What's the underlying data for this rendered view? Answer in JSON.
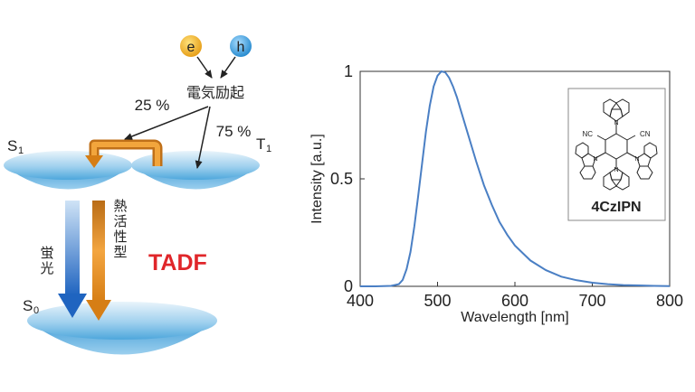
{
  "diagram": {
    "electron": "e",
    "hole": "h",
    "excitation": "電気励起",
    "singlet_pct": "25 %",
    "triplet_pct": "75 %",
    "s1": "S",
    "s1_sub": "1",
    "t1": "T",
    "t1_sub": "1",
    "s0": "S",
    "s0_sub": "0",
    "fluorescence": [
      "蛍",
      "光"
    ],
    "thermal": [
      "熱",
      "活",
      "性",
      "型"
    ],
    "tadf": "TADF",
    "colors": {
      "electron": "#f3b21b",
      "hole": "#2f9ad8",
      "arrow_orange": "#e08a1e",
      "arrow_blue": "#2a70c8",
      "disc": "#3c9ad4",
      "tadf": "#e0262a"
    }
  },
  "chart_data": {
    "type": "line",
    "title": "",
    "xlabel": "Wavelength [nm]",
    "ylabel": "Intensity [a.u.]",
    "xlim": [
      400,
      800
    ],
    "ylim": [
      0,
      1
    ],
    "xticks": [
      "400",
      "500",
      "600",
      "700",
      "800"
    ],
    "yticks": [
      "0",
      "0.5",
      "1"
    ],
    "inset_label": "4CzIPN",
    "inset_groups": [
      "NC",
      "CN",
      "N",
      "N",
      "N",
      "N"
    ],
    "line_color": "#4a7fc4",
    "series": [
      {
        "x": [
          400,
          420,
          440,
          450,
          455,
          460,
          465,
          470,
          475,
          480,
          485,
          490,
          495,
          500,
          505,
          510,
          515,
          520,
          525,
          530,
          540,
          550,
          560,
          570,
          580,
          590,
          600,
          620,
          640,
          660,
          680,
          700,
          720,
          740,
          760,
          780,
          800
        ],
        "values": [
          0.0,
          0.0,
          0.002,
          0.01,
          0.03,
          0.08,
          0.16,
          0.28,
          0.42,
          0.57,
          0.72,
          0.84,
          0.93,
          0.98,
          1.0,
          0.995,
          0.97,
          0.93,
          0.88,
          0.82,
          0.7,
          0.58,
          0.47,
          0.38,
          0.3,
          0.24,
          0.19,
          0.12,
          0.075,
          0.045,
          0.028,
          0.017,
          0.01,
          0.006,
          0.004,
          0.002,
          0.001
        ]
      }
    ]
  }
}
